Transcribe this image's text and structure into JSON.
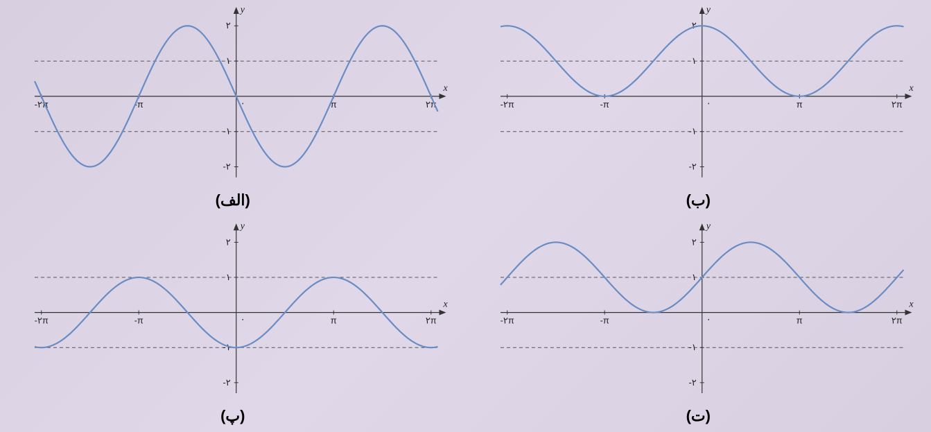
{
  "background_gradient": [
    "#d8d0e0",
    "#e0d8e8"
  ],
  "panels": [
    {
      "id": "alef",
      "label": "(الف)",
      "function": "2*sin(-x)",
      "type": "line",
      "curve_color": "#6a8cc4",
      "axis_color": "#333333",
      "dashed_color": "#555555",
      "xlim": [
        -6.5,
        6.5
      ],
      "ylim": [
        -2.3,
        2.3
      ],
      "amplitude": 2,
      "phase": 3.14159,
      "vshift": 0,
      "dashed_y": [
        1,
        -1
      ],
      "xticks": [
        -6.283,
        -3.1416,
        3.1416,
        6.283
      ],
      "xtick_labels": [
        "-۲π",
        "-π",
        "π",
        "۲π"
      ],
      "yticks": [
        2,
        1,
        -1,
        -2
      ],
      "ytick_labels": [
        "۲",
        "۱",
        "-۱",
        "-۲"
      ]
    },
    {
      "id": "beh",
      "label": "(ب)",
      "function": "cos(x)+1 but bounded shape",
      "type": "line",
      "curve_color": "#6a8cc4",
      "axis_color": "#333333",
      "dashed_color": "#555555",
      "xlim": [
        -6.5,
        6.5
      ],
      "ylim": [
        -2.3,
        2.3
      ],
      "amplitude": 1,
      "phase": 0,
      "vshift": 1,
      "cosine": true,
      "dashed_y": [
        1,
        -1
      ],
      "xticks": [
        -6.283,
        -3.1416,
        3.1416,
        6.283
      ],
      "xtick_labels": [
        "-۲π",
        "-π",
        "π",
        "۲π"
      ],
      "yticks": [
        2,
        1,
        -1,
        -2
      ],
      "ytick_labels": [
        "۲",
        "۱",
        "-۱",
        "-۲"
      ]
    },
    {
      "id": "peh",
      "label": "(پ)",
      "function": "-cos(x)",
      "type": "line",
      "curve_color": "#6a8cc4",
      "axis_color": "#333333",
      "dashed_color": "#555555",
      "xlim": [
        -6.5,
        6.5
      ],
      "ylim": [
        -2.3,
        2.3
      ],
      "amplitude": -1,
      "phase": 0,
      "vshift": 0,
      "cosine": true,
      "dashed_y": [
        1,
        -1
      ],
      "xticks": [
        -6.283,
        -3.1416,
        3.1416,
        6.283
      ],
      "xtick_labels": [
        "-۲π",
        "-π",
        "π",
        "۲π"
      ],
      "yticks": [
        2,
        1,
        -1,
        -2
      ],
      "ytick_labels": [
        "۲",
        "۱",
        "-۱",
        "-۲"
      ]
    },
    {
      "id": "teh",
      "label": "(ت)",
      "function": "sin(x)+1",
      "type": "line",
      "curve_color": "#6a8cc4",
      "axis_color": "#333333",
      "dashed_color": "#555555",
      "xlim": [
        -6.5,
        6.5
      ],
      "ylim": [
        -2.3,
        2.3
      ],
      "amplitude": 1,
      "phase": 0,
      "vshift": 1,
      "cosine": false,
      "dashed_y": [
        1,
        -1
      ],
      "xticks": [
        -6.283,
        -3.1416,
        3.1416,
        6.283
      ],
      "xtick_labels": [
        "-۲π",
        "-π",
        "π",
        "۲π"
      ],
      "yticks": [
        2,
        1,
        -1,
        -2
      ],
      "ytick_labels": [
        "۲",
        "۱",
        "-۱",
        "-۲"
      ]
    }
  ],
  "axis_labels": {
    "x": "x",
    "y": "y"
  }
}
